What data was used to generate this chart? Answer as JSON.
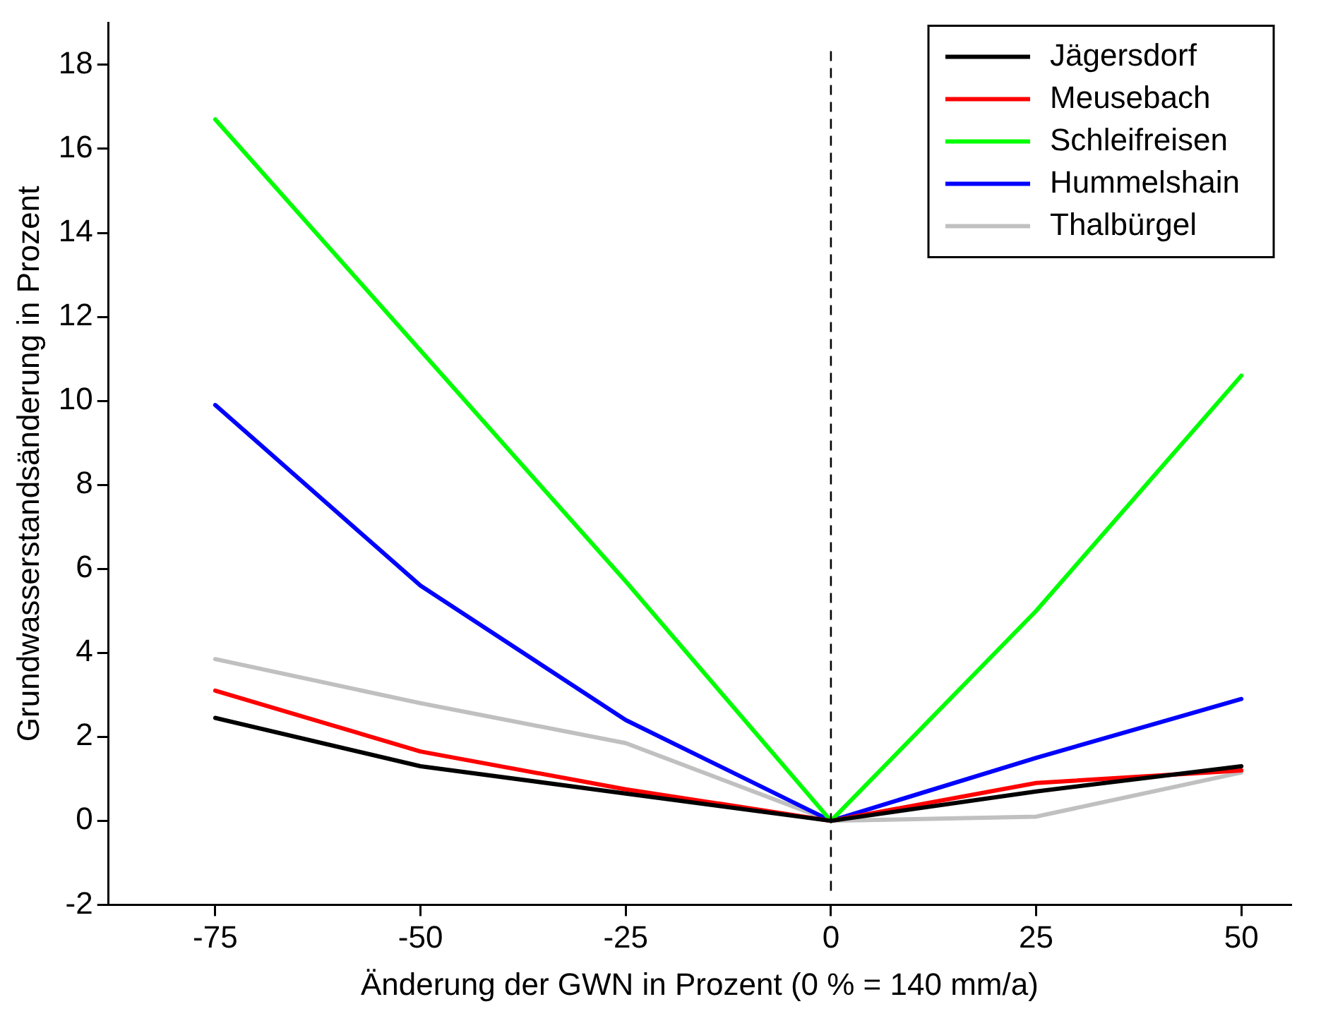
{
  "chart_data": {
    "type": "line",
    "xlabel": "Änderung der GWN in Prozent (0 % = 140 mm/a)",
    "ylabel": "Grundwasserstandsänderung in Prozent",
    "x": [
      -75,
      -50,
      -25,
      0,
      25,
      50
    ],
    "series": [
      {
        "name": "Jägersdorf",
        "color": "#000000",
        "values": [
          2.45,
          1.3,
          0.65,
          0,
          0.7,
          1.3
        ]
      },
      {
        "name": "Meusebach",
        "color": "#ff0000",
        "values": [
          3.1,
          1.65,
          0.75,
          0,
          0.9,
          1.2
        ]
      },
      {
        "name": "Schleifreisen",
        "color": "#00ff00",
        "values": [
          16.7,
          11.2,
          5.7,
          0,
          5.0,
          10.6
        ]
      },
      {
        "name": "Hummelshain",
        "color": "#0000ff",
        "values": [
          9.9,
          5.6,
          2.4,
          0,
          1.5,
          2.9
        ]
      },
      {
        "name": "Thalbürgel",
        "color": "#c0c0c0",
        "values": [
          3.85,
          2.8,
          1.85,
          0,
          0.1,
          1.15
        ]
      }
    ],
    "xlim": [
      -88,
      56
    ],
    "xticks": [
      -75,
      -50,
      -25,
      0,
      25,
      50
    ],
    "ylim": [
      -2,
      19
    ],
    "yticks": [
      -2,
      0,
      2,
      4,
      6,
      8,
      10,
      12,
      14,
      16,
      18
    ],
    "ref_lines": [
      {
        "axis": "x",
        "value": 0,
        "color": "#000000",
        "line_style": "dashed"
      }
    ],
    "legend": "top right",
    "grid": false,
    "marker": "none",
    "line_style": "solid"
  }
}
